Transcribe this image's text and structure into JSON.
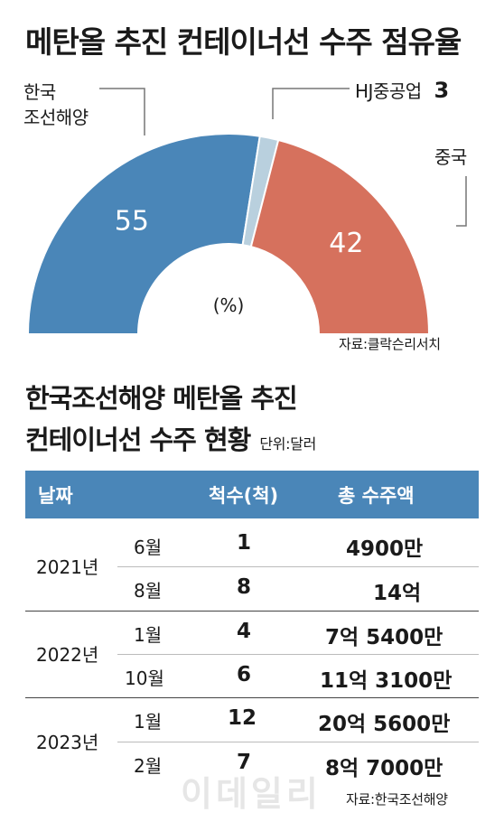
{
  "chart_title": "메탄올 추진 컨테이너선 수주 점유율",
  "chart_data": {
    "type": "pie",
    "title": "메탄올 추진 컨테이너선 수주 점유율",
    "unit": "(%)",
    "slices": [
      {
        "label": "한국 조선해양",
        "label_lines": [
          "한국",
          "조선해양"
        ],
        "value": 55,
        "color": "#4a86b8"
      },
      {
        "label": "HJ중공업",
        "value": 3,
        "color": "#b9d0de"
      },
      {
        "label": "중국",
        "value": 42,
        "color": "#d6715d"
      }
    ]
  },
  "chart_source": "자료:클락슨리서치",
  "table": {
    "title_line1": "한국조선해양 메탄올 추진",
    "title_line2": "컨테이너선 수주 현황",
    "unit": "단위:달러",
    "headers": {
      "date": "날짜",
      "count": "척수(척)",
      "amount": "총 수주액"
    },
    "groups": [
      {
        "year": "2021년",
        "rows": [
          {
            "month": "6월",
            "count": "1",
            "amount": "4900만"
          },
          {
            "month": "8월",
            "count": "8",
            "amount": "14억"
          }
        ]
      },
      {
        "year": "2022년",
        "rows": [
          {
            "month": "1월",
            "count": "4",
            "amount": "7억 5400만"
          },
          {
            "month": "10월",
            "count": "6",
            "amount": "11억 3100만"
          }
        ]
      },
      {
        "year": "2023년",
        "rows": [
          {
            "month": "1월",
            "count": "12",
            "amount": "20억 5600만"
          },
          {
            "month": "2월",
            "count": "7",
            "amount": "8억 7000만"
          }
        ]
      }
    ],
    "source": "자료:한국조선해양"
  },
  "watermark": "이데일리"
}
